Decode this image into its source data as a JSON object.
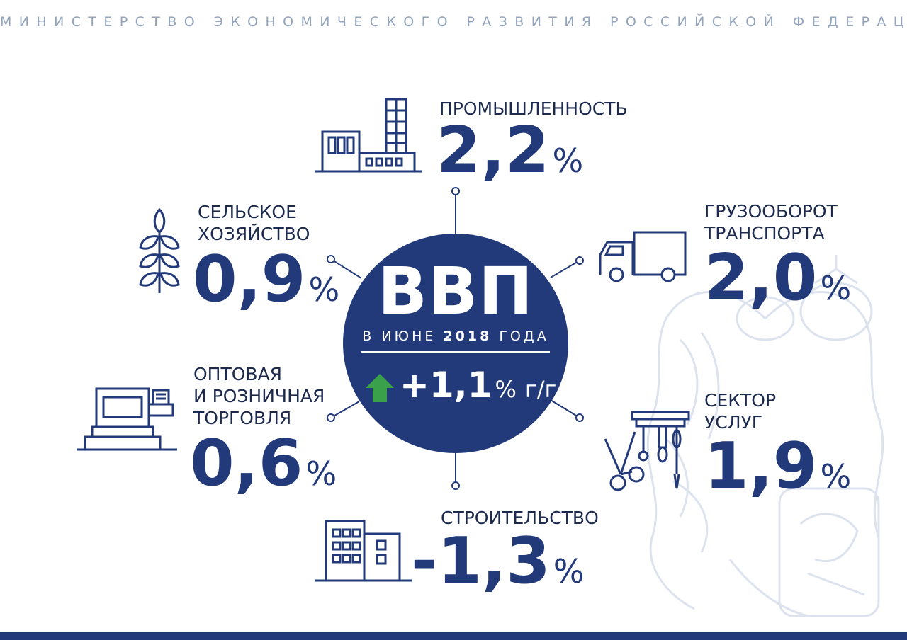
{
  "header": {
    "ministry": "МИНИСТЕРСТВО ЭКОНОМИЧЕСКОГО РАЗВИТИЯ РОССИЙСКОЙ ФЕДЕРАЦИИ"
  },
  "center": {
    "title": "ВВП",
    "period_prefix": "В ИЮНЕ",
    "year": "2018",
    "period_suffix": "ГОДА",
    "change": "+1,1",
    "change_unit": "%",
    "change_basis": "г/г",
    "arrow_color": "#3aa14a"
  },
  "sectors": [
    {
      "label": "ПРОМЫШЛЕННОСТЬ",
      "value": "2,2",
      "unit": "%",
      "icon": "factory-icon"
    },
    {
      "label": "ГРУЗООБОРОТ\nТРАНСПОРТА",
      "value": "2,0",
      "unit": "%",
      "icon": "truck-icon"
    },
    {
      "label": "СЕКТОР\nУСЛУГ",
      "value": "1,9",
      "unit": "%",
      "icon": "barber-tools-icon"
    },
    {
      "label": "СТРОИТЕЛЬСТВО",
      "value": "-1,3",
      "unit": "%",
      "icon": "buildings-icon"
    },
    {
      "label": "ОПТОВАЯ\nИ РОЗНИЧНАЯ\nТОРГОВЛЯ",
      "value": "0,6",
      "unit": "%",
      "icon": "cash-register-icon"
    },
    {
      "label": "СЕЛЬСКОЕ\nХОЗЯЙСТВО",
      "value": "0,9",
      "unit": "%",
      "icon": "wheat-icon"
    }
  ],
  "colors": {
    "primary": "#22397a",
    "header": "#93a4bd",
    "emblem": "#dde3ee",
    "accent_up": "#3aa14a"
  }
}
